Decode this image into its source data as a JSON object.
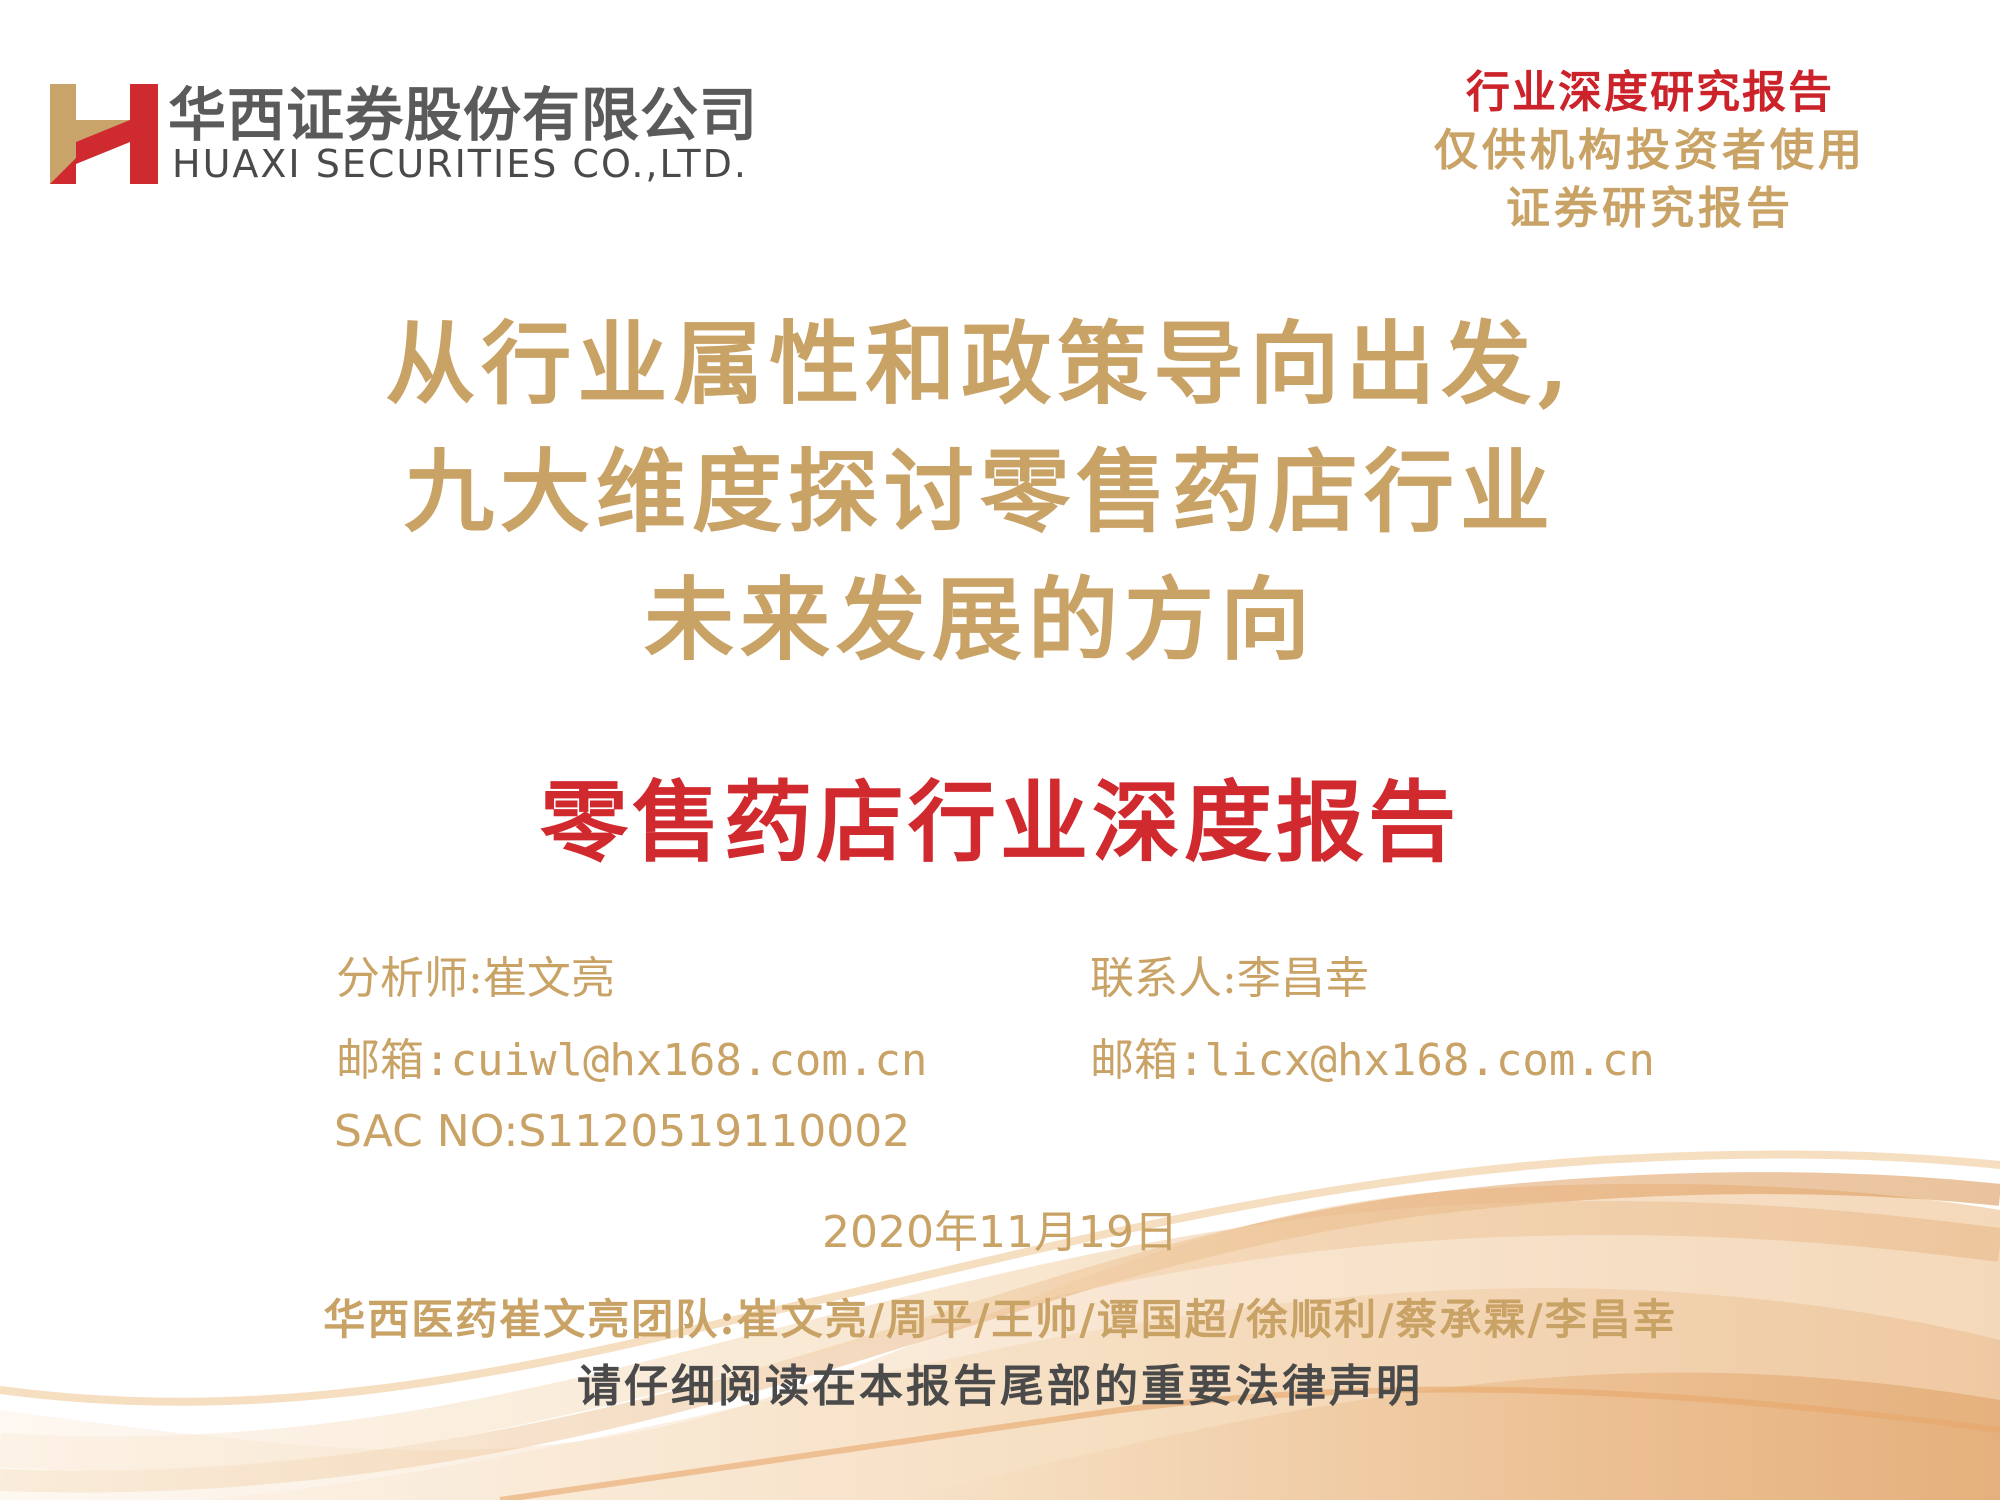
{
  "header": {
    "company_cn": "华西证券股份有限公司",
    "company_en": "HUAXI SECURITIES CO.,LTD.",
    "report_type": "行业深度研究报告",
    "audience": "仅供机构投资者使用",
    "category": "证券研究报告"
  },
  "title": {
    "line1": "从行业属性和政策导向出发,",
    "line2": "九大维度探讨零售药店行业",
    "line3": "未来发展的方向"
  },
  "subtitle": "零售药店行业深度报告",
  "analyst": {
    "label": "分析师:崔文亮",
    "email": "邮箱:cuiwl@hx168.com.cn",
    "sac": "SAC NO:S1120519110002"
  },
  "contact": {
    "label": "联系人:李昌幸",
    "email": "邮箱:licx@hx168.com.cn"
  },
  "date": "2020年11月19日",
  "team": "华西医药崔文亮团队:崔文亮/周平/王帅/谭国超/徐顺利/蔡承霖/李昌幸",
  "disclaimer": "请仔细阅读在本报告尾部的重要法律声明",
  "colors": {
    "gold": "#c9a266",
    "red": "#cc2229",
    "gray": "#5a5a5a"
  }
}
